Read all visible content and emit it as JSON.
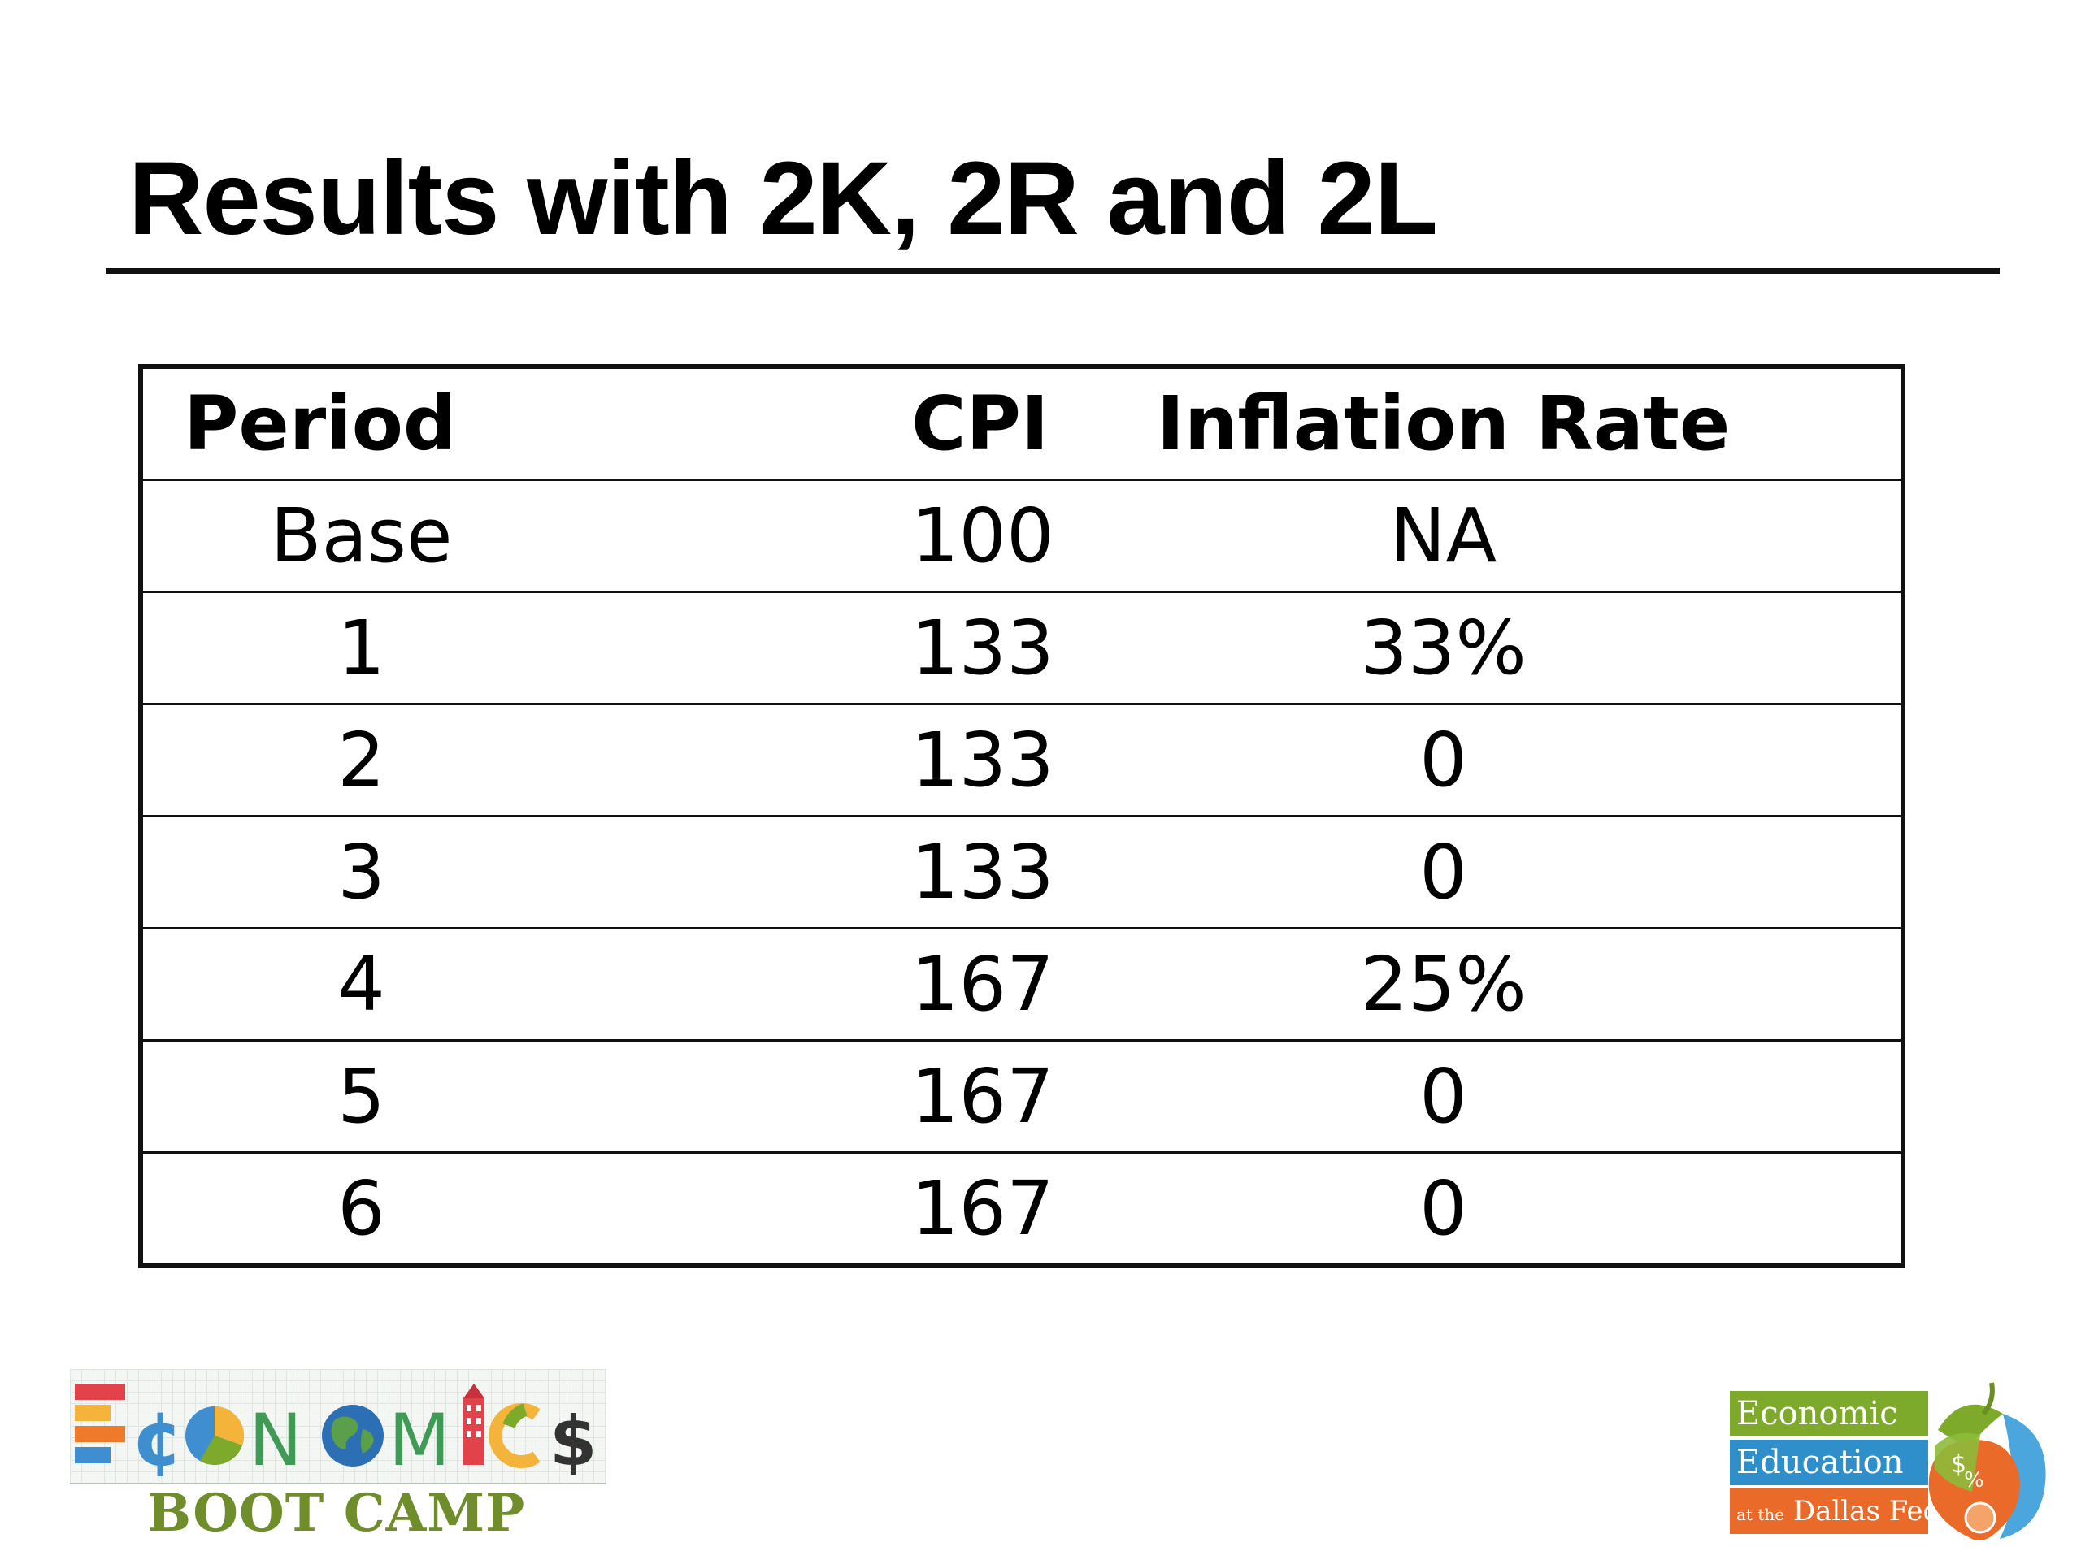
{
  "slide": {
    "title": "Results with 2K, 2R and 2L"
  },
  "table": {
    "headers": [
      "Period",
      "CPI",
      "Inflation Rate"
    ],
    "rows": [
      [
        "Base",
        "100",
        "NA"
      ],
      [
        "1",
        "133",
        "33%"
      ],
      [
        "2",
        "133",
        "0"
      ],
      [
        "3",
        "133",
        "0"
      ],
      [
        "4",
        "167",
        "25%"
      ],
      [
        "5",
        "167",
        "0"
      ],
      [
        "6",
        "167",
        "0"
      ]
    ]
  },
  "logos": {
    "left": {
      "wordmark": "ECONOMICS",
      "subtitle": "BOOT CAMP"
    },
    "right": {
      "line1": "Economic",
      "line2": "Education",
      "line3_prefix": "at the",
      "line3": "Dallas Fed"
    }
  },
  "colors": {
    "text": "#000000",
    "rule": "#111111",
    "bootcamp_green": "#6f8d2a",
    "econ_green": "#7daa2b",
    "econ_blue": "#2f8fcb",
    "econ_orange": "#ea6a2a"
  }
}
